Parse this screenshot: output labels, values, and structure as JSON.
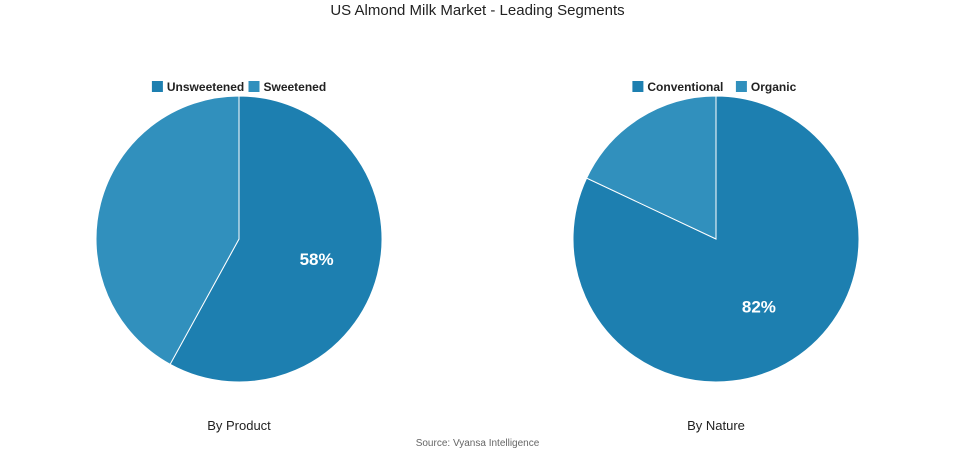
{
  "title": "US Almond Milk Market - Leading Segments",
  "source": "Source: Vyansa Intelligence",
  "colors": {
    "primary": "#1d7fb0",
    "secondary": "#3190bd",
    "divider": "#ffffff"
  },
  "chart_data": [
    {
      "type": "pie",
      "xlabel": "By Product",
      "legend": [
        "Unsweetened",
        "Sweetened"
      ],
      "slices": [
        {
          "name": "Unsweetened",
          "value": 58,
          "label": "58%",
          "color": "#1d7fb0"
        },
        {
          "name": "Sweetened",
          "value": 42,
          "label": "",
          "color": "#3190bd"
        }
      ]
    },
    {
      "type": "pie",
      "xlabel": "By Nature",
      "legend": [
        "Conventional",
        "Organic"
      ],
      "slices": [
        {
          "name": "Conventional",
          "value": 82,
          "label": "82%",
          "color": "#1d7fb0"
        },
        {
          "name": "Organic",
          "value": 18,
          "label": "",
          "color": "#3190bd"
        }
      ]
    }
  ]
}
